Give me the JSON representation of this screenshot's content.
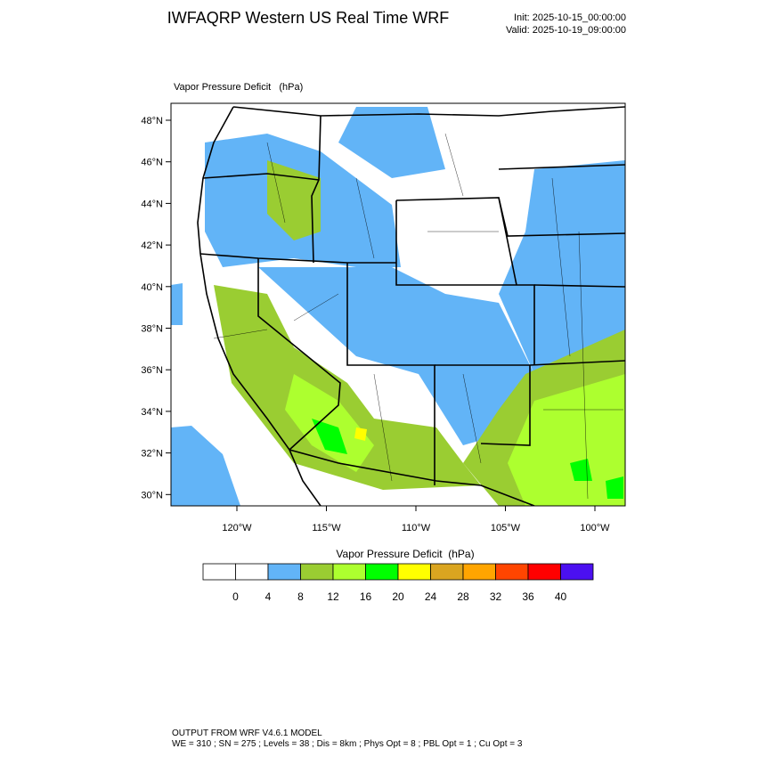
{
  "header": {
    "title": "IWFAQRP Western US Real Time WRF",
    "init": "Init: 2025-10-15_00:00:00",
    "valid": "Valid: 2025-10-19_09:00:00"
  },
  "map": {
    "subtitle": "Vapor Pressure Deficit   (hPa)",
    "lat_labels": [
      "48°N",
      "46°N",
      "44°N",
      "42°N",
      "40°N",
      "38°N",
      "36°N",
      "34°N",
      "32°N",
      "30°N"
    ],
    "lon_labels": [
      "120°W",
      "115°W",
      "110°W",
      "105°W",
      "100°W"
    ]
  },
  "colorbar": {
    "title": "Vapor Pressure Deficit  (hPa)",
    "colors": [
      "#ffffff",
      "#ffffff",
      "#62b4f7",
      "#9acd32",
      "#adff2f",
      "#00ff00",
      "#ffff00",
      "#daa520",
      "#ffa500",
      "#ff4500",
      "#ff0000",
      "#4b10f0"
    ],
    "labels": [
      "0",
      "4",
      "8",
      "12",
      "16",
      "20",
      "24",
      "28",
      "32",
      "36",
      "40"
    ]
  },
  "footer": {
    "line1": "OUTPUT FROM WRF V4.6.1 MODEL",
    "line2": "WE = 310 ; SN = 275 ; Levels = 38 ; Dis = 8km ; Phys Opt = 8 ; PBL Opt = 1 ; Cu Opt = 3"
  }
}
